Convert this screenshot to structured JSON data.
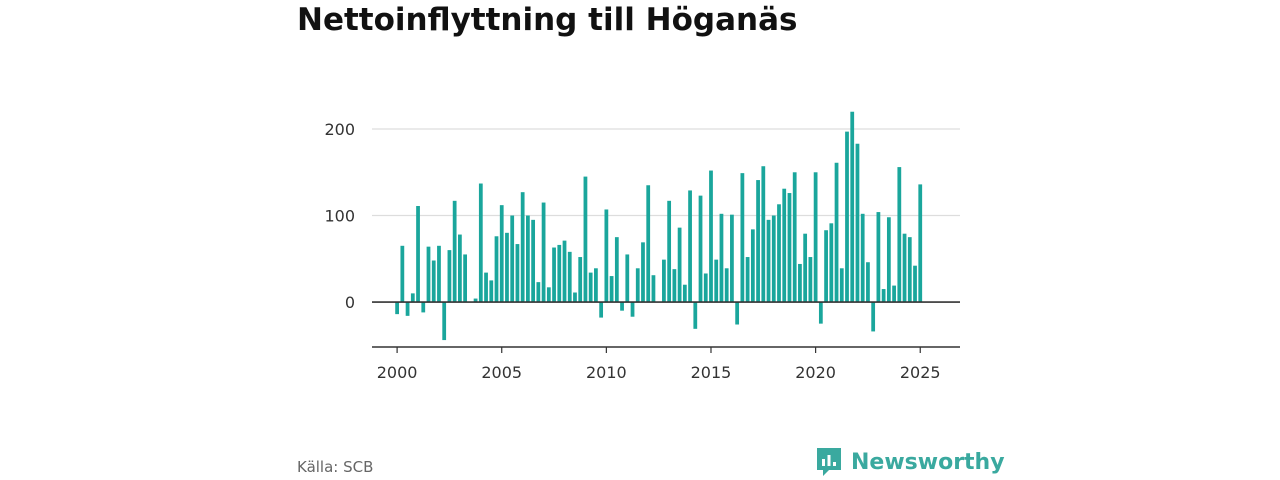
{
  "title": "Nettoinflyttning till Höganäs",
  "source": "Källa: SCB",
  "brand": {
    "name": "Newsworthy",
    "color": "#3aa99f"
  },
  "colors": {
    "bar": "#1aa69c",
    "grid": "#dddddd",
    "axis": "#333333"
  },
  "chart_data": {
    "type": "bar",
    "title": "Nettoinflyttning till Höganäs",
    "xlabel": "",
    "ylabel": "",
    "ylim": [
      -52,
      222
    ],
    "xlim": [
      1998.8,
      2026.9
    ],
    "y_ticks": [
      0,
      100,
      200
    ],
    "x_ticks": [
      2000,
      2005,
      2010,
      2015,
      2020,
      2025
    ],
    "grid": true,
    "start_year": 2000,
    "periods_per_year": 4,
    "values": [
      -14,
      65,
      -16,
      10,
      111,
      -12,
      64,
      48,
      65,
      -44,
      60,
      117,
      78,
      55,
      0,
      4,
      137,
      34,
      25,
      76,
      112,
      80,
      100,
      67,
      127,
      100,
      95,
      23,
      115,
      17,
      63,
      66,
      71,
      58,
      11,
      52,
      145,
      34,
      39,
      -18,
      107,
      30,
      75,
      -10,
      55,
      -17,
      39,
      69,
      135,
      31,
      0,
      49,
      117,
      38,
      86,
      20,
      129,
      -31,
      123,
      33,
      152,
      49,
      102,
      39,
      101,
      -26,
      149,
      52,
      84,
      141,
      157,
      95,
      100,
      113,
      131,
      126,
      150,
      44,
      79,
      52,
      150,
      -25,
      83,
      91,
      161,
      39,
      197,
      220,
      183,
      102,
      46,
      -34,
      104,
      15,
      98,
      19,
      156,
      79,
      75,
      42,
      136
    ]
  }
}
